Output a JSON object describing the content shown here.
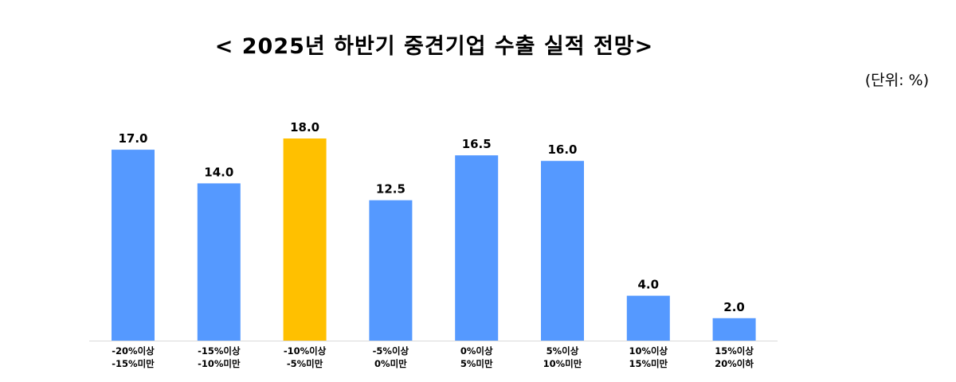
{
  "title": "< 2025년 하반기 중견기업 수출 실적 전망>",
  "unit_note": "(단위: %)",
  "colors": {
    "bar": "#5599FF",
    "highlight": "#FFC000",
    "axis": "#D9D9D9"
  },
  "chart_data": {
    "type": "bar",
    "title": "< 2025년 하반기 중견기업 수출 실적 전망>",
    "xlabel": "",
    "ylabel": "",
    "categories": [
      [
        "-20%이상",
        "-15%미만"
      ],
      [
        "-15%이상",
        "-10%미만"
      ],
      [
        "-10%이상",
        "-5%미만"
      ],
      [
        "-5%이상",
        "0%미만"
      ],
      [
        "0%이상",
        "5%미만"
      ],
      [
        "5%이상",
        "10%미만"
      ],
      [
        "10%이상",
        "15%미만"
      ],
      [
        "15%이상",
        "20%이하"
      ]
    ],
    "values": [
      17.0,
      14.0,
      18.0,
      12.5,
      16.5,
      16.0,
      4.0,
      2.0
    ],
    "value_labels": [
      "17.0",
      "14.0",
      "18.0",
      "12.5",
      "16.5",
      "16.0",
      "4.0",
      "2.0"
    ],
    "highlight_index": 2,
    "ylim": [
      0,
      18
    ],
    "grid": false,
    "legend": "none"
  }
}
